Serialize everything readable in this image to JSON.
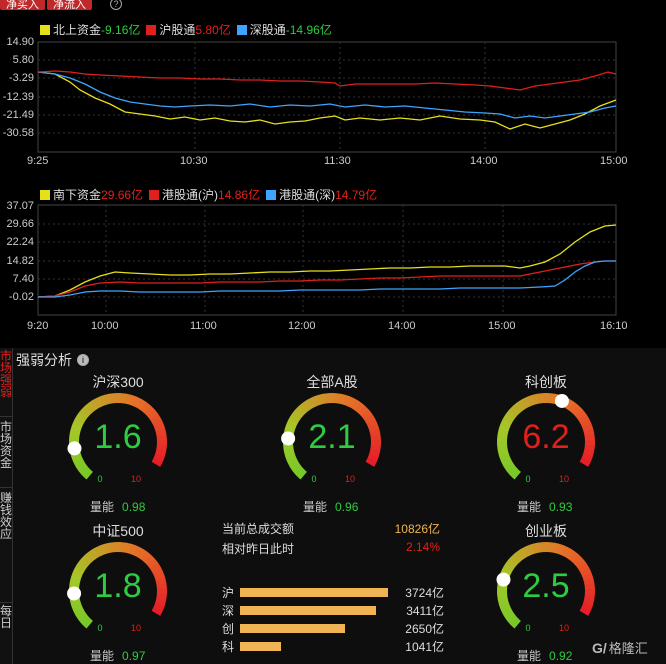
{
  "tabs": [
    {
      "label": "净买入"
    },
    {
      "label": "净流入"
    }
  ],
  "north": {
    "legend": [
      {
        "label": "北上资金",
        "value": "-9.16亿",
        "color": "#e6e01a",
        "value_color": "#2ecc40"
      },
      {
        "label": "沪股通",
        "value": "5.80亿",
        "color": "#e0201c",
        "value_color": "#e0201c"
      },
      {
        "label": "深股通",
        "value": "-14.96亿",
        "color": "#3da5ff",
        "value_color": "#2ecc40"
      }
    ],
    "y_ticks": [
      "14.90",
      "5.80",
      "-3.29",
      "-12.39",
      "-21.49",
      "-30.58"
    ],
    "x_ticks": [
      "9:25",
      "10:30",
      "11:30",
      "14:00",
      "15:00"
    ]
  },
  "south": {
    "legend": [
      {
        "label": "南下资金",
        "value": "29.66亿",
        "color": "#e6e01a",
        "value_color": "#e0201c"
      },
      {
        "label": "港股通(沪)",
        "value": "14.86亿",
        "color": "#e0201c",
        "value_color": "#e0201c"
      },
      {
        "label": "港股通(深)",
        "value": "14.79亿",
        "color": "#3da5ff",
        "value_color": "#e0201c"
      }
    ],
    "y_ticks": [
      "37.07",
      "29.66",
      "22.24",
      "14.82",
      "7.40",
      "-0.02"
    ],
    "x_ticks": [
      "9:20",
      "10:00",
      "11:00",
      "12:00",
      "14:00",
      "15:00",
      "16:10"
    ]
  },
  "strength": {
    "title": "强弱分析",
    "side_tabs": [
      {
        "label": "市场强弱",
        "active": true
      },
      {
        "label": "市场资金",
        "active": false
      },
      {
        "label": "赚钱效应",
        "active": false
      },
      {
        "label": "每日",
        "active": false
      }
    ],
    "gauges": [
      {
        "name": "沪深300",
        "value": "1.6",
        "score": 1.6,
        "value_color": "#2ecc40",
        "vol_label": "量能",
        "vol": "0.98"
      },
      {
        "name": "全部A股",
        "value": "2.1",
        "score": 2.1,
        "value_color": "#2ecc40",
        "vol_label": "量能",
        "vol": "0.96"
      },
      {
        "name": "科创板",
        "value": "6.2",
        "score": 6.2,
        "value_color": "#e0201c",
        "vol_label": "量能",
        "vol": "0.93"
      },
      {
        "name": "中证500",
        "value": "1.8",
        "score": 1.8,
        "value_color": "#2ecc40",
        "vol_label": "量能",
        "vol": "0.97"
      },
      {
        "name": "创业板",
        "value": "2.5",
        "score": 2.5,
        "value_color": "#2ecc40",
        "vol_label": "量能",
        "vol": "0.92"
      }
    ],
    "gauge_min": "0",
    "gauge_max": "10",
    "stats": [
      {
        "label": "当前总成交额",
        "value": "10826亿",
        "color": "#f0b454"
      },
      {
        "label": "相对昨日此时",
        "value": "2.14%",
        "color": "#e0201c"
      }
    ],
    "bars": [
      {
        "label": "沪",
        "value": "3724亿",
        "amount": 3724
      },
      {
        "label": "深",
        "value": "3411亿",
        "amount": 3411
      },
      {
        "label": "创",
        "value": "2650亿",
        "amount": 2650
      },
      {
        "label": "科",
        "value": "1041亿",
        "amount": 1041
      }
    ]
  },
  "watermark": "格隆汇"
}
